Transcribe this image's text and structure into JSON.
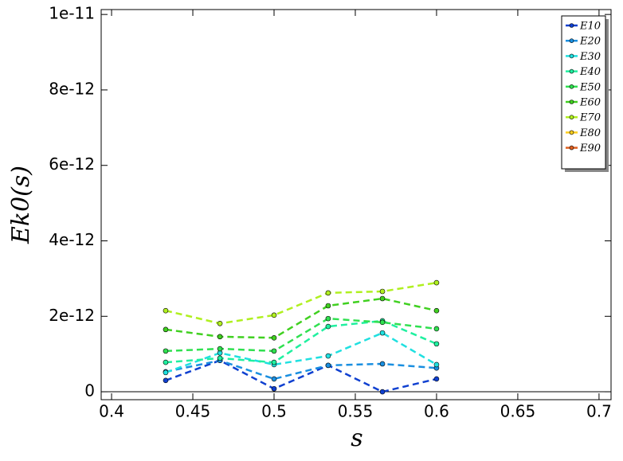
{
  "chart_data": {
    "type": "line",
    "xlabel": "s",
    "ylabel": "Ek0(s)",
    "x": [
      0.4333,
      0.4667,
      0.5,
      0.5333,
      0.5667,
      0.6
    ],
    "series": [
      {
        "name": "E10",
        "color": "#1040d0",
        "values": [
          3e-13,
          8.3e-13,
          8e-14,
          7e-13,
          0,
          3.4e-13
        ]
      },
      {
        "name": "E20",
        "color": "#1a8fe0",
        "values": [
          5.3e-13,
          8.3e-13,
          3.4e-13,
          7e-13,
          7.4e-13,
          6.3e-13
        ]
      },
      {
        "name": "E30",
        "color": "#20e0e0",
        "values": [
          5.1e-13,
          1.03e-12,
          7.2e-13,
          9.5e-13,
          1.56e-12,
          7.2e-13
        ]
      },
      {
        "name": "E40",
        "color": "#20f0a0",
        "values": [
          7.8e-13,
          8.9e-13,
          7.8e-13,
          1.73e-12,
          1.88e-12,
          1.27e-12
        ]
      },
      {
        "name": "E50",
        "color": "#30e050",
        "values": [
          1.08e-12,
          1.14e-12,
          1.08e-12,
          1.94e-12,
          1.84e-12,
          1.67e-12
        ]
      },
      {
        "name": "E60",
        "color": "#40d020",
        "values": [
          1.65e-12,
          1.46e-12,
          1.43e-12,
          2.28e-12,
          2.47e-12,
          2.15e-12
        ]
      },
      {
        "name": "E70",
        "color": "#b0f020",
        "values": [
          2.15e-12,
          1.81e-12,
          2.03e-12,
          2.62e-12,
          2.66e-12,
          2.89e-12
        ]
      },
      {
        "name": "E80",
        "color": "#ffd020",
        "values": [
          null,
          null,
          null,
          null,
          null,
          null
        ]
      },
      {
        "name": "E90",
        "color": "#e06020",
        "values": [
          null,
          null,
          null,
          null,
          null,
          null
        ]
      }
    ],
    "xlim": [
      0.3936,
      0.7074
    ],
    "ylim": [
      -2.1e-13,
      1.013e-11
    ],
    "xticks": [
      0.4,
      0.45,
      0.5,
      0.55,
      0.6,
      0.65,
      0.7
    ],
    "yticks": [
      0,
      {
        "value": 2e-12,
        "label": "2e-12"
      },
      {
        "value": 4e-12,
        "label": "4e-12"
      },
      {
        "value": 6e-12,
        "label": "6e-12"
      },
      {
        "value": 8e-12,
        "label": "8e-12"
      },
      {
        "value": 1e-11,
        "label": "1e-11"
      }
    ],
    "grid": false,
    "legend": "upper right"
  }
}
